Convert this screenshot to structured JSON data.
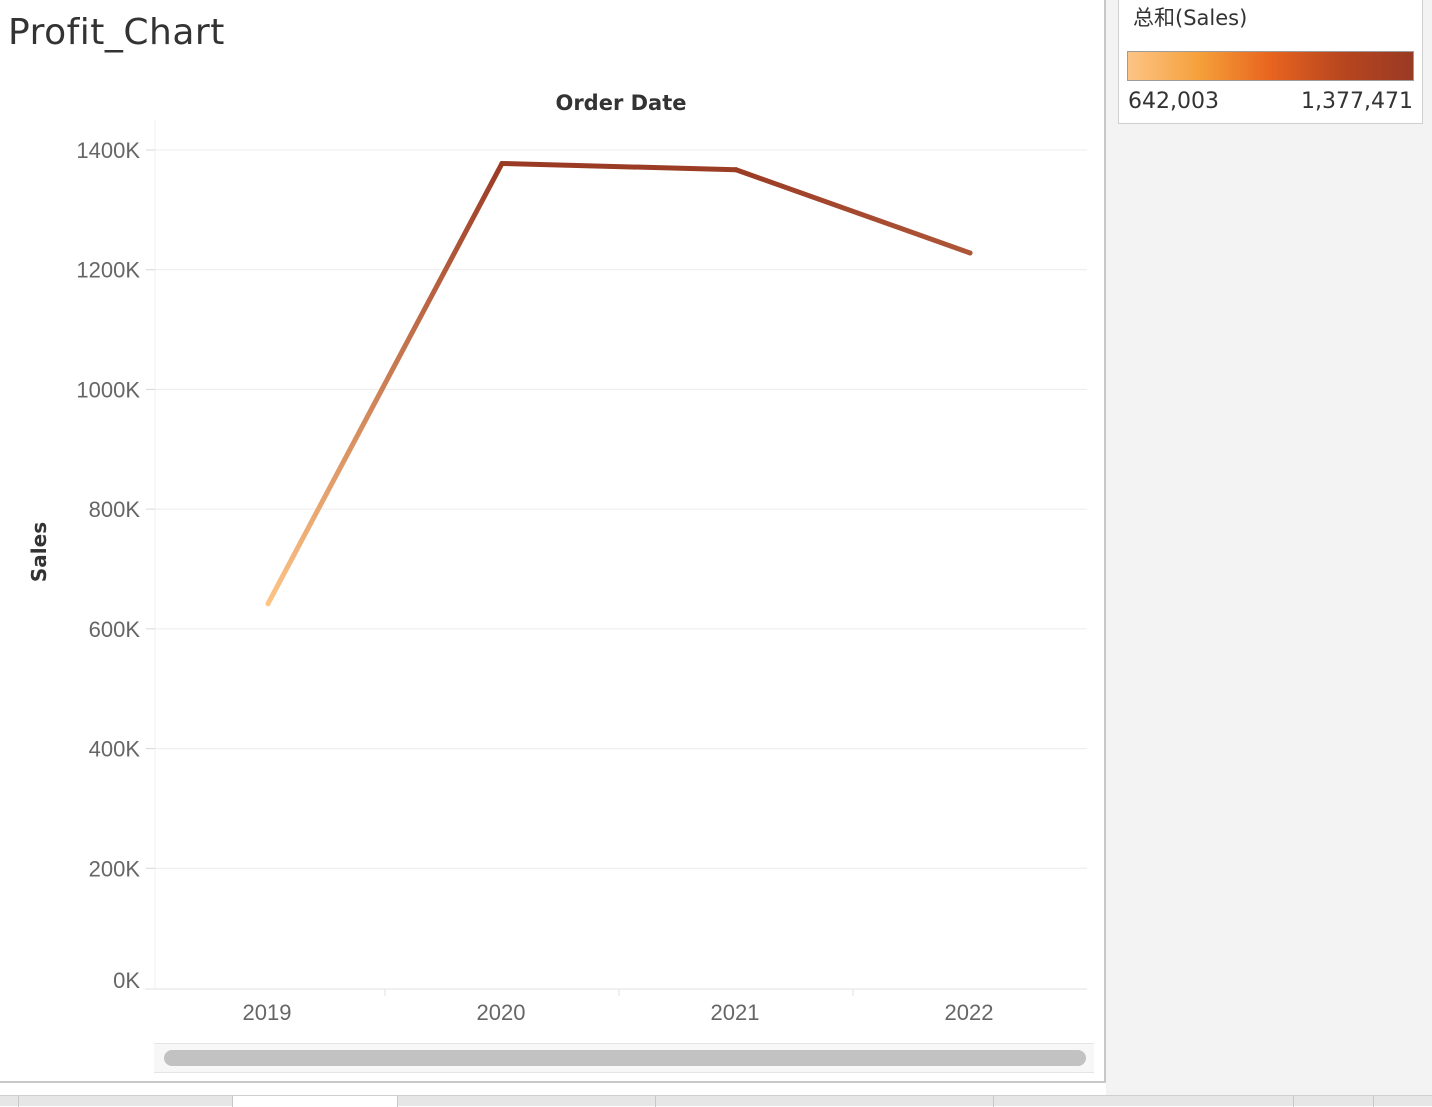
{
  "sheet": {
    "title": "Profit_Chart"
  },
  "legend": {
    "title": "总和(Sales)",
    "min_label": "642,003",
    "max_label": "1,377,471",
    "colors": [
      "#fdc486",
      "#f5a03a",
      "#e8641f",
      "#b8461f",
      "#9a3a24"
    ]
  },
  "chart_data": {
    "type": "line",
    "title": "",
    "xlabel": "Order Date",
    "ylabel": "Sales",
    "categories": [
      "2019",
      "2020",
      "2021",
      "2022"
    ],
    "values": [
      642003,
      1377471,
      1367000,
      1228000
    ],
    "ylim": [
      0,
      1450000
    ],
    "yticks": [
      0,
      200000,
      400000,
      600000,
      800000,
      1000000,
      1200000,
      1400000
    ],
    "ytick_labels": [
      "0K",
      "200K",
      "400K",
      "600K",
      "800K",
      "1000K",
      "1200K",
      "1400K"
    ],
    "grid": true,
    "color_encoding": "sum of sales",
    "color_min": "#fdc486",
    "color_max": "#9a3a24"
  },
  "tabs": [
    "",
    "",
    "",
    "",
    "",
    "",
    ""
  ]
}
